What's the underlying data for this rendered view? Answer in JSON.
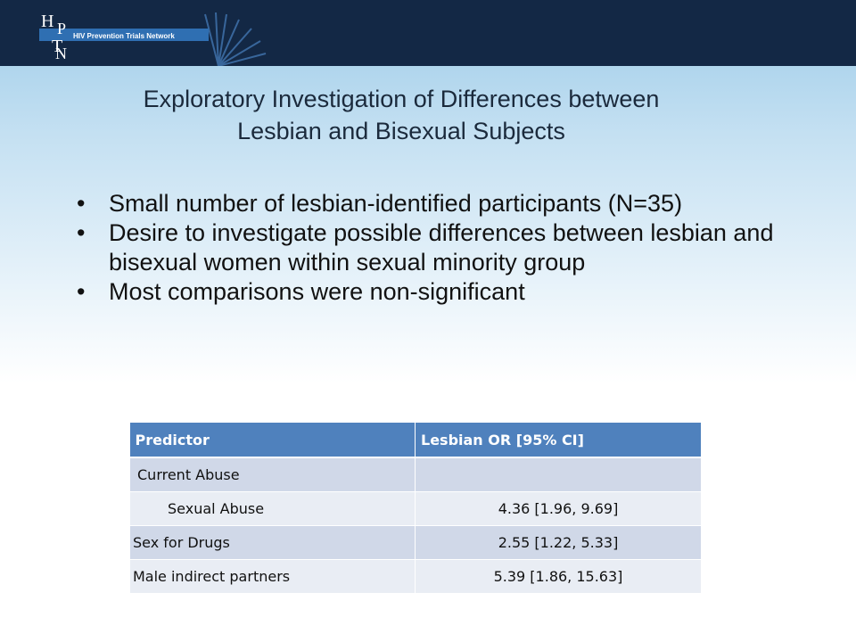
{
  "header": {
    "logo_text": "HPTN",
    "network_name": "HIV Prevention Trials Network"
  },
  "slide": {
    "title_line1": "Exploratory Investigation of Differences between",
    "title_line2": "Lesbian and Bisexual Subjects",
    "bullets": [
      "Small number of lesbian-identified participants (N=35)",
      "Desire to investigate possible differences between lesbian and bisexual women within sexual minority group",
      "Most comparisons were non-significant"
    ]
  },
  "table": {
    "headers": [
      "Predictor",
      "Lesbian OR [95% CI]"
    ],
    "rows": [
      [
        "Current Abuse",
        ""
      ],
      [
        "Sexual Abuse",
        "4.36 [1.96, 9.69]"
      ],
      [
        "Sex for Drugs",
        "2.55 [1.22, 5.33]"
      ],
      [
        "Male indirect partners",
        "5.39 [1.86, 15.63]"
      ]
    ]
  },
  "colors": {
    "header_bar": "#132845",
    "table_header": "#4f81bd",
    "row_dark": "#d0d8e8",
    "row_light": "#e9edf4",
    "logo_blue": "#2f6fb2"
  }
}
